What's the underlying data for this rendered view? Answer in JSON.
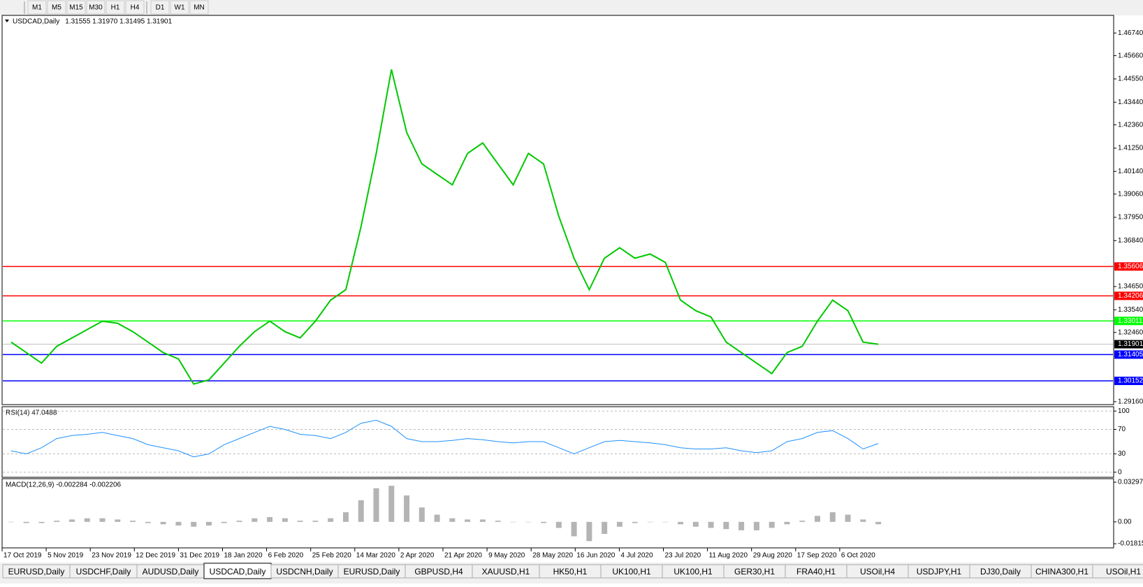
{
  "toolbar": {
    "timeframes": [
      "M1",
      "M5",
      "M15",
      "M30",
      "H1",
      "H4",
      "D1",
      "W1",
      "MN"
    ]
  },
  "tabs": [
    "EURUSD,Daily",
    "USDCHF,Daily",
    "AUDUSD,Daily",
    "USDCAD,Daily",
    "USDCNH,Daily",
    "EURUSD,Daily",
    "GBPUSD,H4",
    "XAUUSD,H1",
    "HK50,H1",
    "UK100,H1",
    "UK100,H1",
    "GER30,H1",
    "FRA40,H1",
    "USOil,H4",
    "USDJPY,H1",
    "DJ30,Daily",
    "CHINA300,H1",
    "USOil,H1"
  ],
  "active_tab": 3,
  "chart_data": [
    {
      "type": "line",
      "title": "USDCAD,Daily",
      "subtitle": "1.31555 1.31970 1.31495 1.31901",
      "color": "#00c800",
      "x_labels": [
        "17 Oct 2019",
        "5 Nov 2019",
        "23 Nov 2019",
        "12 Dec 2019",
        "31 Dec 2019",
        "18 Jan 2020",
        "6 Feb 2020",
        "25 Feb 2020",
        "14 Mar 2020",
        "2 Apr 2020",
        "21 Apr 2020",
        "9 May 2020",
        "28 May 2020",
        "16 Jun 2020",
        "4 Jul 2020",
        "23 Jul 2020",
        "11 Aug 2020",
        "29 Aug 2020",
        "17 Sep 2020",
        "6 Oct 2020"
      ],
      "values": [
        1.32,
        1.315,
        1.31,
        1.318,
        1.322,
        1.326,
        1.33,
        1.329,
        1.325,
        1.32,
        1.315,
        1.312,
        1.3,
        1.302,
        1.31,
        1.318,
        1.325,
        1.33,
        1.325,
        1.322,
        1.33,
        1.34,
        1.345,
        1.375,
        1.41,
        1.45,
        1.42,
        1.405,
        1.4,
        1.395,
        1.41,
        1.415,
        1.405,
        1.395,
        1.41,
        1.405,
        1.38,
        1.36,
        1.345,
        1.36,
        1.365,
        1.36,
        1.362,
        1.358,
        1.34,
        1.335,
        1.332,
        1.32,
        1.315,
        1.31,
        1.305,
        1.315,
        1.318,
        1.33,
        1.34,
        1.335,
        1.32,
        1.319
      ],
      "ylim": [
        1.2902,
        1.4758
      ],
      "yticks": [
        {
          "value": 1.4674,
          "label": "1.46740"
        },
        {
          "value": 1.4566,
          "label": "1.45660"
        },
        {
          "value": 1.4455,
          "label": "1.44550"
        },
        {
          "value": 1.4344,
          "label": "1.43440"
        },
        {
          "value": 1.4236,
          "label": "1.42360"
        },
        {
          "value": 1.4125,
          "label": "1.41250"
        },
        {
          "value": 1.4014,
          "label": "1.40140"
        },
        {
          "value": 1.3906,
          "label": "1.39060"
        },
        {
          "value": 1.3795,
          "label": "1.37950"
        },
        {
          "value": 1.3684,
          "label": "1.36840"
        },
        {
          "value": 1.3465,
          "label": "1.34650"
        },
        {
          "value": 1.3354,
          "label": "1.33540"
        },
        {
          "value": 1.3246,
          "label": "1.32460"
        },
        {
          "value": 1.2916,
          "label": "1.29160"
        }
      ],
      "levels": [
        {
          "value": 1.35606,
          "color": "#ff0000"
        },
        {
          "value": 1.34206,
          "color": "#ff0000"
        },
        {
          "value": 1.33011,
          "color": "#00ff00"
        },
        {
          "value": 1.31901,
          "color": "#000000"
        },
        {
          "value": 1.31405,
          "color": "#0000ff"
        },
        {
          "value": 1.30152,
          "color": "#0000ff"
        }
      ]
    },
    {
      "type": "line",
      "title": "RSI(14) 47.0488",
      "color": "#1e90ff",
      "values": [
        35,
        30,
        40,
        55,
        60,
        62,
        65,
        60,
        55,
        45,
        40,
        35,
        25,
        30,
        45,
        55,
        65,
        75,
        70,
        62,
        60,
        55,
        65,
        80,
        85,
        75,
        55,
        50,
        50,
        52,
        55,
        53,
        50,
        48,
        50,
        50,
        40,
        30,
        40,
        50,
        52,
        50,
        48,
        45,
        40,
        38,
        38,
        40,
        35,
        32,
        35,
        50,
        55,
        65,
        68,
        55,
        38,
        47
      ],
      "ylim": [
        -8.3,
        107.1
      ],
      "yticks": [
        0,
        30,
        70,
        100
      ]
    },
    {
      "type": "bar",
      "title": "MACD(12,26,9) -0.002284 -0.002206",
      "color": "#b4b4b4",
      "values": [
        0.0,
        -0.001,
        -0.001,
        0.001,
        0.002,
        0.003,
        0.003,
        0.002,
        0.001,
        -0.001,
        -0.002,
        -0.003,
        -0.004,
        -0.003,
        -0.001,
        0.001,
        0.003,
        0.004,
        0.003,
        0.001,
        0.001,
        0.003,
        0.008,
        0.018,
        0.028,
        0.03,
        0.022,
        0.012,
        0.006,
        0.003,
        0.002,
        0.002,
        0.001,
        0.0,
        0.0,
        -0.001,
        -0.005,
        -0.012,
        -0.016,
        -0.01,
        -0.004,
        -0.001,
        0.0,
        0.0,
        -0.002,
        -0.004,
        -0.005,
        -0.006,
        -0.007,
        -0.007,
        -0.005,
        -0.002,
        0.001,
        0.005,
        0.008,
        0.006,
        0.002,
        -0.002
      ],
      "ylim": [
        -0.0216,
        0.0359
      ],
      "yticks": [
        0.032972,
        {
          "value": 0,
          "label": "0.00"
        },
        -0.018155
      ]
    }
  ]
}
